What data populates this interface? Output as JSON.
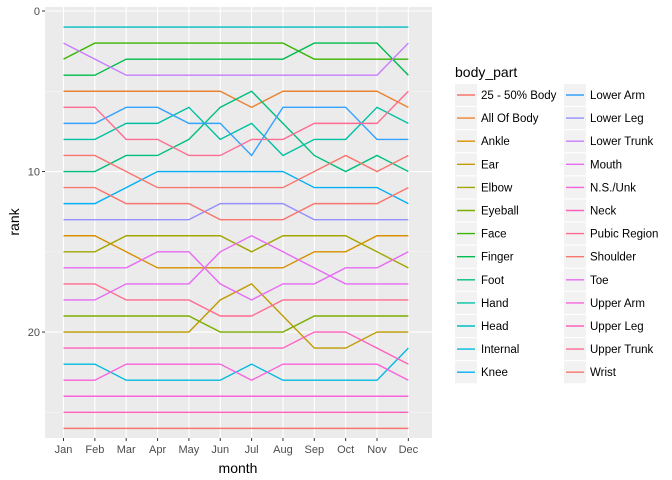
{
  "chart_data": {
    "type": "line",
    "xlabel": "month",
    "ylabel": "rank",
    "legend_title": "body_part",
    "legend_position": "right",
    "y_reversed": true,
    "ylim": [
      0,
      26.6
    ],
    "yticks": [
      0,
      10,
      20
    ],
    "grid": true,
    "x": [
      "Jan",
      "Feb",
      "Mar",
      "Apr",
      "May",
      "Jun",
      "Jul",
      "Aug",
      "Sep",
      "Oct",
      "Nov",
      "Dec"
    ],
    "series": [
      {
        "name": "25 - 50% Body",
        "color": "#F8766D",
        "values": [
          26,
          26,
          26,
          26,
          26,
          26,
          26,
          26,
          26,
          26,
          26,
          26
        ]
      },
      {
        "name": "All Of Body",
        "color": "#EA8331",
        "values": [
          5,
          5,
          5,
          5,
          5,
          5,
          6,
          5,
          5,
          5,
          5,
          6
        ]
      },
      {
        "name": "Ankle",
        "color": "#D89000",
        "values": [
          14,
          14,
          15,
          16,
          16,
          16,
          16,
          16,
          15,
          15,
          14,
          14
        ]
      },
      {
        "name": "Ear",
        "color": "#C09B00",
        "values": [
          20,
          20,
          20,
          20,
          20,
          18,
          17,
          19,
          21,
          21,
          20,
          20
        ]
      },
      {
        "name": "Elbow",
        "color": "#A3A500",
        "values": [
          15,
          15,
          14,
          14,
          14,
          14,
          15,
          14,
          14,
          14,
          15,
          16
        ]
      },
      {
        "name": "Eyeball",
        "color": "#7CAE00",
        "values": [
          19,
          19,
          19,
          19,
          19,
          20,
          20,
          20,
          19,
          19,
          19,
          19
        ]
      },
      {
        "name": "Face",
        "color": "#39B600",
        "values": [
          3,
          2,
          2,
          2,
          2,
          2,
          2,
          2,
          3,
          3,
          3,
          3
        ]
      },
      {
        "name": "Finger",
        "color": "#00BB4E",
        "values": [
          4,
          4,
          3,
          3,
          3,
          3,
          3,
          3,
          2,
          2,
          2,
          4
        ]
      },
      {
        "name": "Foot",
        "color": "#00BF7D",
        "values": [
          10,
          10,
          9,
          9,
          8,
          6,
          5,
          7,
          9,
          10,
          9,
          10
        ]
      },
      {
        "name": "Hand",
        "color": "#00C1A3",
        "values": [
          8,
          8,
          7,
          7,
          6,
          8,
          7,
          9,
          8,
          8,
          6,
          7
        ]
      },
      {
        "name": "Head",
        "color": "#00BFC4",
        "values": [
          1,
          1,
          1,
          1,
          1,
          1,
          1,
          1,
          1,
          1,
          1,
          1
        ]
      },
      {
        "name": "Internal",
        "color": "#00BAE0",
        "values": [
          22,
          22,
          23,
          23,
          23,
          23,
          22,
          23,
          23,
          23,
          23,
          21
        ]
      },
      {
        "name": "Knee",
        "color": "#00B0F6",
        "values": [
          12,
          12,
          11,
          10,
          10,
          10,
          10,
          10,
          11,
          11,
          11,
          12
        ]
      },
      {
        "name": "Lower Arm",
        "color": "#35A2FF",
        "values": [
          7,
          7,
          6,
          6,
          7,
          7,
          9,
          6,
          6,
          6,
          8,
          8
        ]
      },
      {
        "name": "Lower Leg",
        "color": "#9590FF",
        "values": [
          13,
          13,
          13,
          13,
          13,
          12,
          12,
          12,
          13,
          13,
          13,
          13
        ]
      },
      {
        "name": "Lower Trunk",
        "color": "#C77CFF",
        "values": [
          2,
          3,
          4,
          4,
          4,
          4,
          4,
          4,
          4,
          4,
          4,
          2
        ]
      },
      {
        "name": "Mouth",
        "color": "#E76BF3",
        "values": [
          16,
          16,
          16,
          15,
          15,
          17,
          18,
          17,
          17,
          16,
          16,
          15
        ]
      },
      {
        "name": "N.S./Unk",
        "color": "#FA62DB",
        "values": [
          24,
          24,
          24,
          24,
          24,
          24,
          24,
          24,
          24,
          24,
          24,
          24
        ]
      },
      {
        "name": "Neck",
        "color": "#FF62BC",
        "values": [
          25,
          25,
          25,
          25,
          25,
          25,
          25,
          25,
          25,
          25,
          25,
          25
        ]
      },
      {
        "name": "Pubic Region",
        "color": "#FF6C91",
        "values": [
          17,
          17,
          18,
          18,
          18,
          19,
          19,
          18,
          18,
          18,
          18,
          18
        ]
      },
      {
        "name": "Shoulder",
        "color": "#F8766D",
        "values": [
          9,
          9,
          10,
          11,
          11,
          11,
          11,
          11,
          10,
          9,
          10,
          9
        ]
      },
      {
        "name": "Toe",
        "color": "#E76BF3",
        "values": [
          18,
          18,
          17,
          17,
          17,
          15,
          14,
          15,
          16,
          17,
          17,
          17
        ]
      },
      {
        "name": "Upper Arm",
        "color": "#FA62DB",
        "values": [
          23,
          23,
          22,
          22,
          22,
          22,
          23,
          22,
          22,
          22,
          22,
          23
        ]
      },
      {
        "name": "Upper Leg",
        "color": "#FF62BC",
        "values": [
          21,
          21,
          21,
          21,
          21,
          21,
          21,
          21,
          20,
          20,
          21,
          22
        ]
      },
      {
        "name": "Upper Trunk",
        "color": "#FF6C91",
        "values": [
          6,
          6,
          8,
          8,
          9,
          9,
          8,
          8,
          7,
          7,
          7,
          5
        ]
      },
      {
        "name": "Wrist",
        "color": "#F8766D",
        "values": [
          11,
          11,
          12,
          12,
          12,
          13,
          13,
          13,
          12,
          12,
          12,
          11
        ]
      }
    ]
  }
}
